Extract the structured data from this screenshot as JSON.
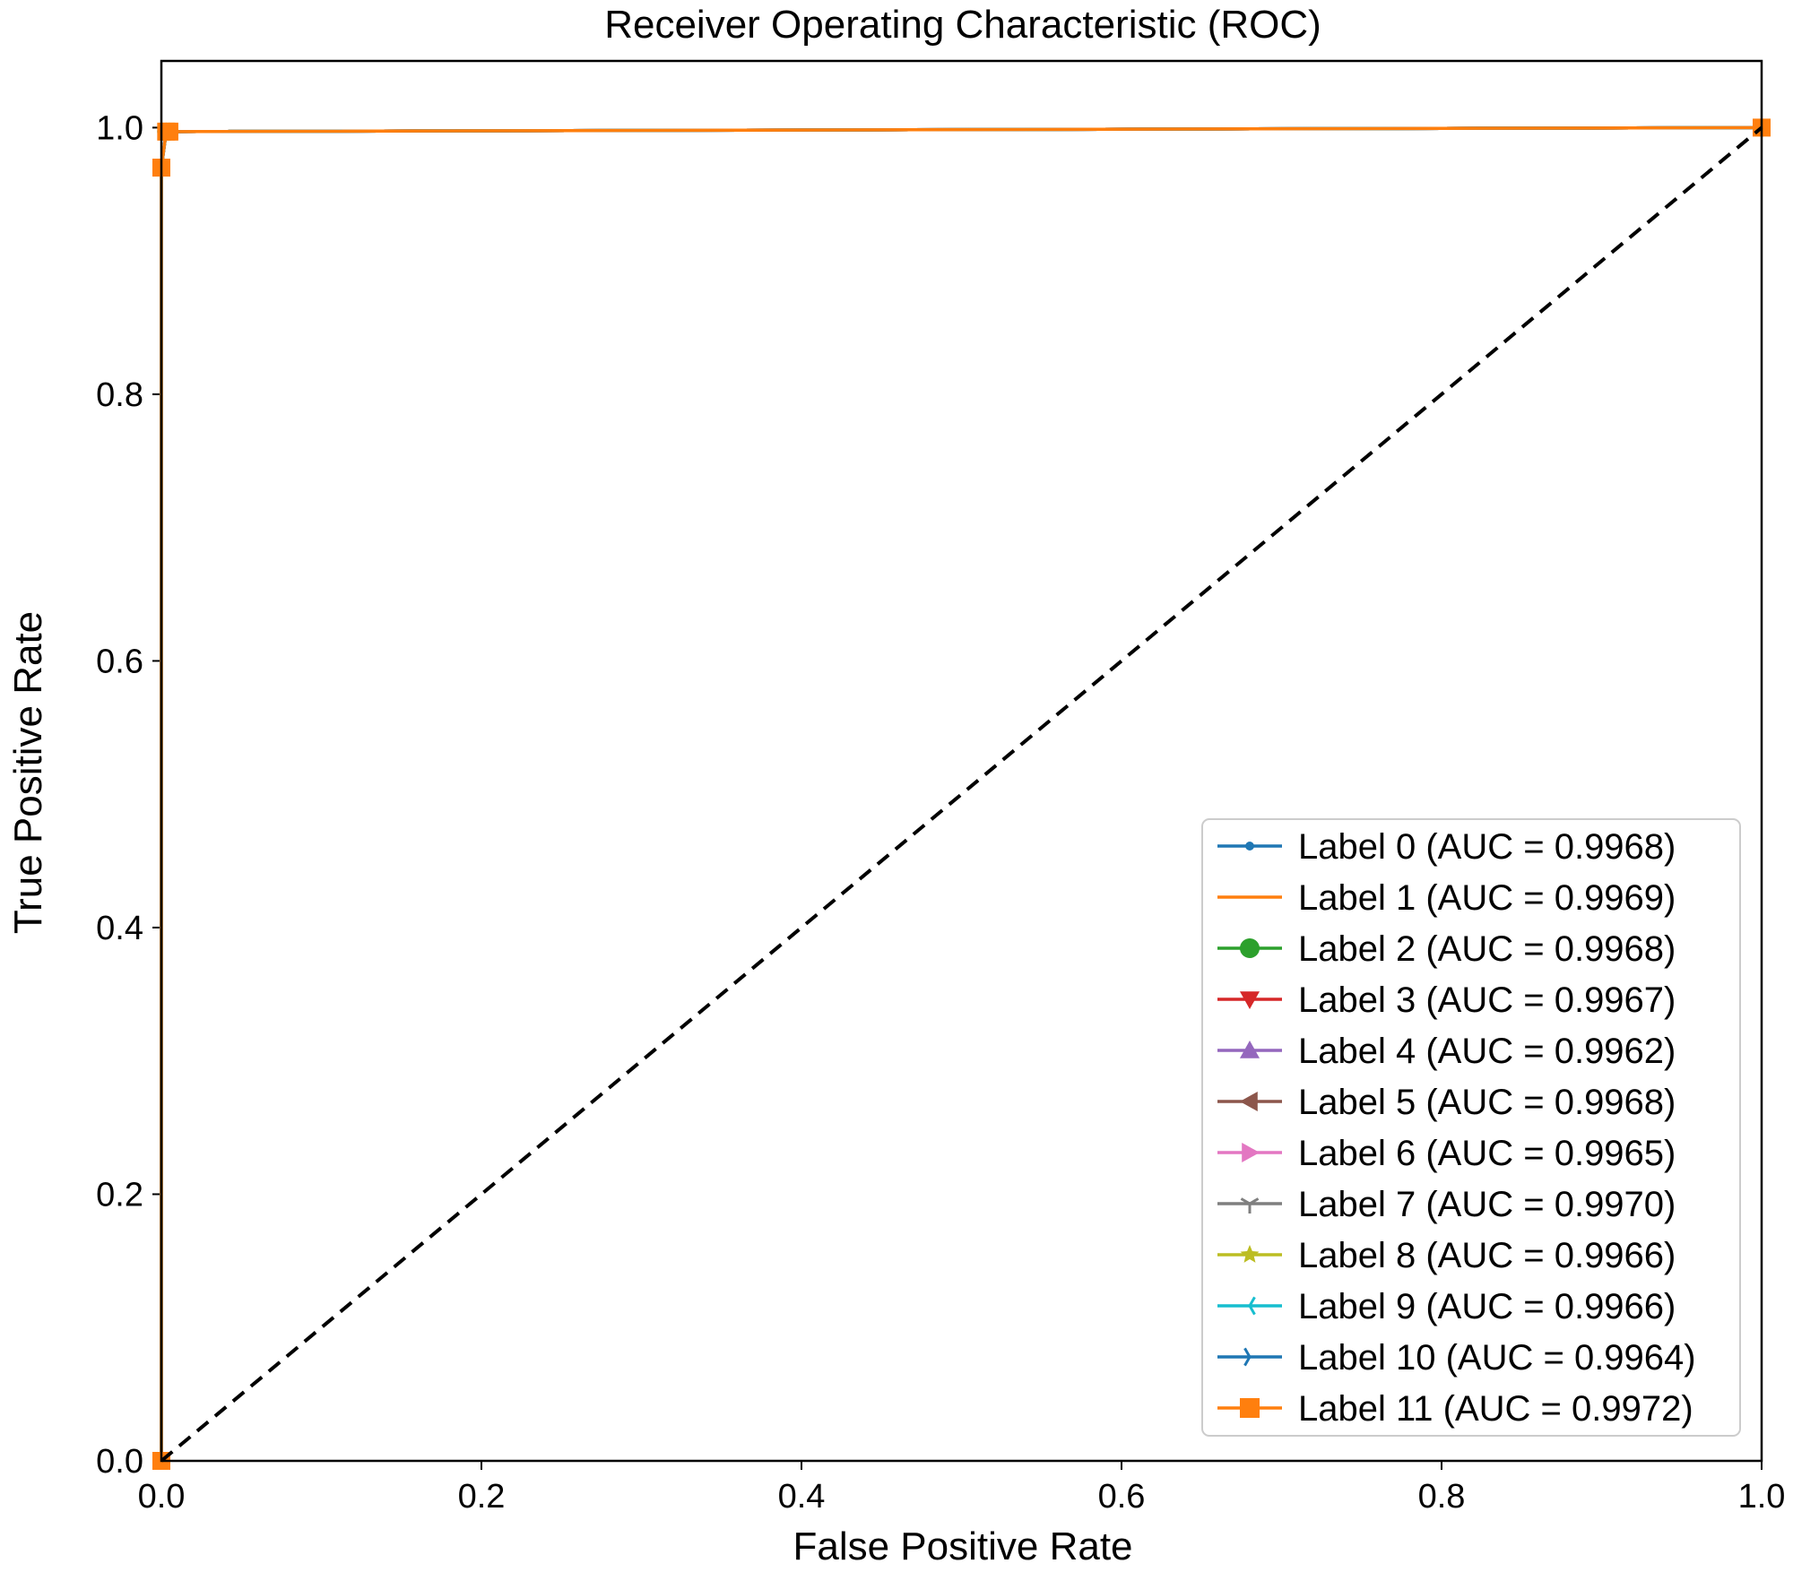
{
  "chart_data": {
    "type": "line",
    "title": "Receiver Operating Characteristic (ROC)",
    "xlabel": "False Positive Rate",
    "ylabel": "True Positive Rate",
    "xlim": [
      0.0,
      1.0
    ],
    "ylim": [
      0.0,
      1.05
    ],
    "xticks": [
      0.0,
      0.2,
      0.4,
      0.6,
      0.8,
      1.0
    ],
    "xtick_labels": [
      "0.0",
      "0.2",
      "0.4",
      "0.6",
      "0.8",
      "1.0"
    ],
    "yticks": [
      0.0,
      0.2,
      0.4,
      0.6,
      0.8,
      1.0
    ],
    "ytick_labels": [
      "0.0",
      "0.2",
      "0.4",
      "0.6",
      "0.8",
      "1.0"
    ],
    "grid": false,
    "legend_position": "bottom-right",
    "series": [
      {
        "name": "Label 0 (AUC = 0.9968)",
        "color": "#1f77b4",
        "marker": "point",
        "x": [
          0.0,
          0.0,
          0.003,
          0.005,
          1.0
        ],
        "y": [
          0.0,
          0.97,
          0.997,
          0.997,
          1.0
        ]
      },
      {
        "name": "Label 1 (AUC = 0.9969)",
        "color": "#ff7f0e",
        "marker": "none",
        "x": [
          0.0,
          0.0,
          0.003,
          0.005,
          1.0
        ],
        "y": [
          0.0,
          0.97,
          0.997,
          0.997,
          1.0
        ]
      },
      {
        "name": "Label 2 (AUC = 0.9968)",
        "color": "#2ca02c",
        "marker": "circle",
        "x": [
          0.0,
          0.0,
          0.003,
          0.005,
          1.0
        ],
        "y": [
          0.0,
          0.97,
          0.997,
          0.997,
          1.0
        ]
      },
      {
        "name": "Label 3 (AUC = 0.9967)",
        "color": "#d62728",
        "marker": "triangle-down",
        "x": [
          0.0,
          0.0,
          0.003,
          0.005,
          1.0
        ],
        "y": [
          0.0,
          0.97,
          0.997,
          0.997,
          1.0
        ]
      },
      {
        "name": "Label 4 (AUC = 0.9962)",
        "color": "#9467bd",
        "marker": "triangle-up",
        "x": [
          0.0,
          0.0,
          0.003,
          0.005,
          1.0
        ],
        "y": [
          0.0,
          0.97,
          0.997,
          0.997,
          1.0
        ]
      },
      {
        "name": "Label 5 (AUC = 0.9968)",
        "color": "#8c564b",
        "marker": "triangle-left",
        "x": [
          0.0,
          0.0,
          0.003,
          0.005,
          1.0
        ],
        "y": [
          0.0,
          0.97,
          0.997,
          0.997,
          1.0
        ]
      },
      {
        "name": "Label 6 (AUC = 0.9965)",
        "color": "#e377c2",
        "marker": "triangle-right",
        "x": [
          0.0,
          0.0,
          0.003,
          0.005,
          1.0
        ],
        "y": [
          0.0,
          0.97,
          0.997,
          0.997,
          1.0
        ]
      },
      {
        "name": "Label 7 (AUC = 0.9970)",
        "color": "#7f7f7f",
        "marker": "tri-down",
        "x": [
          0.0,
          0.0,
          0.003,
          0.005,
          1.0
        ],
        "y": [
          0.0,
          0.97,
          0.997,
          0.997,
          1.0
        ]
      },
      {
        "name": "Label 8 (AUC = 0.9966)",
        "color": "#bcbd22",
        "marker": "star",
        "x": [
          0.0,
          0.0,
          0.003,
          0.005,
          1.0
        ],
        "y": [
          0.0,
          0.97,
          0.997,
          0.997,
          1.0
        ]
      },
      {
        "name": "Label 9 (AUC = 0.9966)",
        "color": "#17becf",
        "marker": "tri-left",
        "x": [
          0.0,
          0.0,
          0.003,
          0.005,
          1.0
        ],
        "y": [
          0.0,
          0.97,
          0.997,
          0.997,
          1.0
        ]
      },
      {
        "name": "Label 10 (AUC = 0.9964)",
        "color": "#1f77b4",
        "marker": "tri-right",
        "x": [
          0.0,
          0.0,
          0.003,
          0.005,
          1.0
        ],
        "y": [
          0.0,
          0.97,
          0.997,
          0.997,
          1.0
        ]
      },
      {
        "name": "Label 11 (AUC = 0.9972)",
        "color": "#ff7f0e",
        "marker": "square",
        "x": [
          0.0,
          0.0,
          0.003,
          0.005,
          1.0
        ],
        "y": [
          0.0,
          0.97,
          0.997,
          0.997,
          1.0
        ]
      }
    ],
    "reference_line": {
      "x": [
        0.0,
        1.0
      ],
      "y": [
        0.0,
        1.0
      ],
      "color": "#000000",
      "style": "dashed"
    }
  }
}
